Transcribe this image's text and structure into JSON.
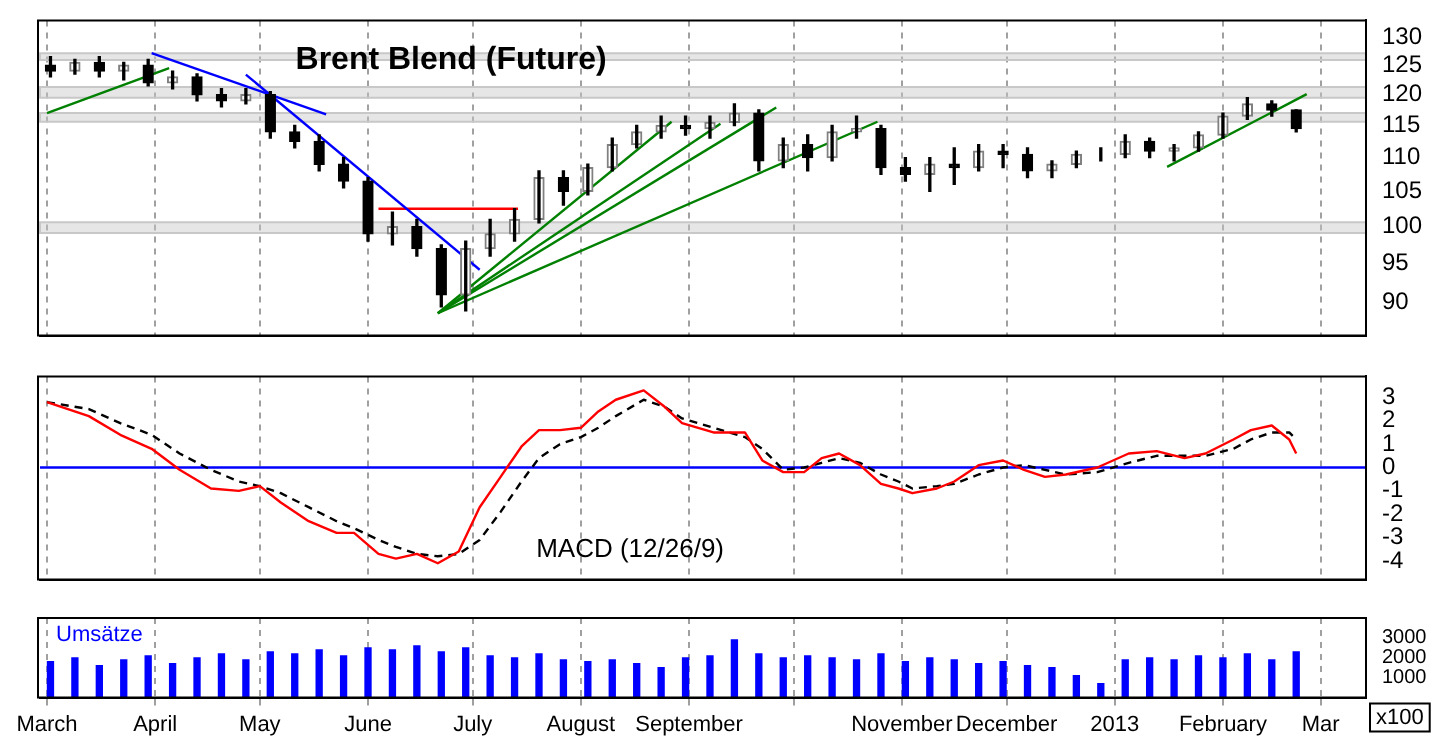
{
  "chart_data": [
    {
      "type": "candlestick",
      "title": "Brent Blend (Future)",
      "log": "y",
      "grid": "x",
      "tick_labels": "y",
      "x": [
        "2012-03-02",
        "2012-03-09",
        "2012-03-16",
        "2012-03-23",
        "2012-03-30",
        "2012-04-06",
        "2012-04-13",
        "2012-04-20",
        "2012-04-27",
        "2012-05-04",
        "2012-05-11",
        "2012-05-18",
        "2012-05-25",
        "2012-06-01",
        "2012-06-08",
        "2012-06-15",
        "2012-06-22",
        "2012-06-29",
        "2012-07-06",
        "2012-07-13",
        "2012-07-20",
        "2012-07-27",
        "2012-08-03",
        "2012-08-10",
        "2012-08-17",
        "2012-08-24",
        "2012-08-31",
        "2012-09-07",
        "2012-09-14",
        "2012-09-21",
        "2012-09-28",
        "2012-10-05",
        "2012-10-12",
        "2012-10-19",
        "2012-10-26",
        "2012-11-02",
        "2012-11-09",
        "2012-11-16",
        "2012-11-23",
        "2012-11-30",
        "2012-12-07",
        "2012-12-14",
        "2012-12-21",
        "2012-12-28",
        "2013-01-04",
        "2013-01-11",
        "2013-01-18",
        "2013-01-25",
        "2013-02-01",
        "2013-02-08",
        "2013-02-15",
        "2013-02-22"
      ],
      "ohlc": [
        [
          125,
          126.5,
          123,
          124
        ],
        [
          124,
          126,
          123.5,
          125.5
        ],
        [
          125.5,
          126.5,
          123,
          124
        ],
        [
          124,
          125.5,
          122.5,
          125
        ],
        [
          125,
          126,
          121.5,
          122
        ],
        [
          122,
          124,
          121,
          123
        ],
        [
          123,
          123.5,
          119,
          120
        ],
        [
          120,
          121,
          118,
          119
        ],
        [
          119,
          121,
          118.5,
          120
        ],
        [
          120,
          120.5,
          113,
          114
        ],
        [
          114,
          115,
          111.5,
          112.5
        ],
        [
          112.5,
          113.5,
          108,
          109
        ],
        [
          109,
          110,
          105.5,
          106.5
        ],
        [
          106.5,
          107,
          98,
          99
        ],
        [
          99,
          102,
          97.5,
          100
        ],
        [
          100,
          101,
          96,
          97
        ],
        [
          97,
          97.5,
          89.5,
          91
        ],
        [
          91,
          98,
          89,
          97
        ],
        [
          97,
          101,
          96,
          99
        ],
        [
          99,
          102.5,
          98,
          101
        ],
        [
          101,
          108,
          100.5,
          107
        ],
        [
          107,
          108,
          103,
          105
        ],
        [
          105,
          109,
          104.5,
          108.5
        ],
        [
          108.5,
          113,
          108,
          112
        ],
        [
          112,
          115,
          111.5,
          114
        ],
        [
          114,
          116.5,
          113,
          115
        ],
        [
          115,
          116.5,
          113.5,
          114.5
        ],
        [
          114.5,
          116.5,
          113,
          115.5
        ],
        [
          115.5,
          118.5,
          115,
          117
        ],
        [
          117,
          117.5,
          108,
          109.5
        ],
        [
          109.5,
          113,
          108.5,
          112
        ],
        [
          112,
          113.5,
          108,
          110
        ],
        [
          110,
          115,
          109.5,
          114
        ],
        [
          114,
          116.5,
          113,
          114.5
        ],
        [
          114.5,
          115,
          107.5,
          108.5
        ],
        [
          108.5,
          110,
          106.5,
          107.5
        ],
        [
          107.5,
          110,
          105,
          109
        ],
        [
          109,
          111.5,
          106,
          108.5
        ],
        [
          108.5,
          112,
          108,
          111
        ],
        [
          111,
          112,
          108.5,
          110.5
        ],
        [
          110.5,
          111.5,
          107,
          108
        ],
        [
          108,
          109.5,
          107,
          109
        ],
        [
          109,
          111,
          108.5,
          110.5
        ],
        [
          110.5,
          111.5,
          109.5,
          110.5
        ],
        [
          110.5,
          113.5,
          110,
          112.5
        ],
        [
          112.5,
          113,
          110,
          111
        ],
        [
          111,
          112,
          109.5,
          111.5
        ],
        [
          111.5,
          114,
          111,
          113.5
        ],
        [
          113.5,
          117,
          113,
          116.5
        ],
        [
          116.5,
          119.5,
          116,
          118.5
        ],
        [
          118.5,
          119,
          116.5,
          117.5
        ],
        [
          117.5,
          117.5,
          114,
          114.5
        ]
      ],
      "series": [
        {
          "type": "line",
          "color": "#0000ff",
          "x": [
            "2012-03-31",
            "2012-05-20"
          ],
          "values": [
            127.1,
            116.8
          ]
        },
        {
          "type": "line",
          "color": "#0000ff",
          "x": [
            "2012-04-27",
            "2012-07-03"
          ],
          "values": [
            123.4,
            94.2
          ]
        },
        {
          "type": "line",
          "color": "#008000",
          "x": [
            "2012-03-01",
            "2012-04-05"
          ],
          "values": [
            117,
            124.5
          ]
        },
        {
          "type": "line",
          "color": "#008000",
          "x": [
            "2012-06-21",
            "2012-08-27"
          ],
          "values": [
            88.7,
            115.6
          ]
        },
        {
          "type": "line",
          "color": "#008000",
          "x": [
            "2012-06-21",
            "2012-09-10"
          ],
          "values": [
            88.7,
            115.3
          ]
        },
        {
          "type": "line",
          "color": "#008000",
          "x": [
            "2012-06-21",
            "2012-09-26"
          ],
          "values": [
            88.7,
            117.9
          ]
        },
        {
          "type": "line",
          "color": "#008000",
          "x": [
            "2012-06-21",
            "2012-10-25"
          ],
          "values": [
            88.7,
            115.6
          ]
        },
        {
          "type": "line",
          "color": "#008000",
          "x": [
            "2013-01-16",
            "2013-02-25"
          ],
          "values": [
            108.6,
            120.1
          ]
        },
        {
          "type": "line",
          "color": "#ff0000",
          "x": [
            "2012-06-04",
            "2012-07-14"
          ],
          "values": [
            102.5,
            102.5
          ]
        }
      ],
      "bands": [
        {
          "axis": "y",
          "from": 125.9,
          "to": 127.1,
          "color": "#c8c8c8"
        },
        {
          "axis": "y",
          "from": 119.5,
          "to": 121.3,
          "color": "#c8c8c8"
        },
        {
          "axis": "y",
          "from": 115.6,
          "to": 117,
          "color": "#c8c8c8"
        },
        {
          "axis": "y",
          "from": 99.1,
          "to": 100.6,
          "color": "#c8c8c8"
        }
      ],
      "xlim": [
        "2012-02-28",
        "2013-03-14"
      ],
      "xticks": [
        {
          "value": "2012-03-01",
          "label": null
        },
        {
          "value": "2012-04-01",
          "label": null
        },
        {
          "value": "2012-05-01",
          "label": null
        },
        {
          "value": "2012-06-01",
          "label": null
        },
        {
          "value": "2012-07-01",
          "label": null
        },
        {
          "value": "2012-08-01",
          "label": null
        },
        {
          "value": "2012-09-01",
          "label": null
        },
        {
          "value": "2012-10-01",
          "label": null
        },
        {
          "value": "2012-11-01",
          "label": null
        },
        {
          "value": "2012-12-01",
          "label": null
        },
        {
          "value": "2013-01-01",
          "label": null
        },
        {
          "value": "2013-02-01",
          "label": null
        },
        {
          "value": "2013-03-01",
          "label": null
        }
      ],
      "ylim": [
        86,
        133
      ],
      "yticks": [
        90,
        95,
        100,
        105,
        110,
        115,
        120,
        125,
        130
      ]
    },
    {
      "type": "line",
      "grid": "x",
      "tick_labels": "y",
      "annotations": [
        "MACD (12/26/9)"
      ],
      "x": [
        "2012-03-01",
        "2012-03-13",
        "2012-03-22",
        "2012-03-31",
        "2012-04-08",
        "2012-04-17",
        "2012-04-25",
        "2012-05-01",
        "2012-05-07",
        "2012-05-15",
        "2012-05-23",
        "2012-05-28",
        "2012-06-04",
        "2012-06-09",
        "2012-06-15",
        "2012-06-21",
        "2012-06-27",
        "2012-07-03",
        "2012-07-09",
        "2012-07-15",
        "2012-07-20",
        "2012-07-26",
        "2012-08-01",
        "2012-08-06",
        "2012-08-11",
        "2012-08-19",
        "2012-08-25",
        "2012-08-30",
        "2012-09-08",
        "2012-09-17",
        "2012-09-22",
        "2012-09-28",
        "2012-10-04",
        "2012-10-09",
        "2012-10-14",
        "2012-10-20",
        "2012-10-26",
        "2012-10-31",
        "2012-11-04",
        "2012-11-11",
        "2012-11-16",
        "2012-11-23",
        "2012-11-30",
        "2012-12-06",
        "2012-12-12",
        "2012-12-18",
        "2012-12-27",
        "2013-01-05",
        "2013-01-13",
        "2013-01-21",
        "2013-01-27",
        "2013-02-04",
        "2013-02-09",
        "2013-02-15",
        "2013-02-20",
        "2013-02-22"
      ],
      "series": [
        {
          "color": "#ff0000",
          "line_style": "solid",
          "values": [
            2.8,
            2.2,
            1.4,
            0.8,
            -0.1,
            -0.9,
            -1.0,
            -0.8,
            -1.5,
            -2.3,
            -2.8,
            -2.8,
            -3.7,
            -3.9,
            -3.7,
            -4.1,
            -3.6,
            -1.7,
            -0.4,
            0.9,
            1.6,
            1.6,
            1.7,
            2.4,
            2.9,
            3.3,
            2.6,
            1.9,
            1.5,
            1.5,
            0.3,
            -0.2,
            -0.2,
            0.4,
            0.6,
            0.1,
            -0.7,
            -0.9,
            -1.1,
            -0.9,
            -0.6,
            0.1,
            0.3,
            -0.1,
            -0.4,
            -0.3,
            0.0,
            0.6,
            0.7,
            0.4,
            0.6,
            1.2,
            1.6,
            1.8,
            1.2,
            0.6
          ]
        },
        {
          "color": "#000000",
          "line_style": "dashed",
          "values": [
            2.8,
            2.5,
            1.9,
            1.4,
            0.6,
            -0.1,
            -0.6,
            -0.8,
            -1.1,
            -1.7,
            -2.3,
            -2.6,
            -3.1,
            -3.4,
            -3.7,
            -3.8,
            -3.7,
            -3.1,
            -1.9,
            -0.6,
            0.4,
            1.0,
            1.3,
            1.7,
            2.2,
            2.9,
            2.6,
            2.1,
            1.7,
            1.3,
            0.8,
            -0.1,
            0.0,
            0.2,
            0.4,
            0.2,
            -0.3,
            -0.6,
            -0.9,
            -0.8,
            -0.7,
            -0.3,
            0.0,
            0.1,
            -0.1,
            -0.3,
            -0.2,
            0.2,
            0.5,
            0.5,
            0.5,
            0.8,
            1.2,
            1.5,
            1.5,
            1.2
          ]
        }
      ],
      "ref_lines": [
        {
          "axis": "y",
          "value": 0,
          "color": "#0000ff"
        }
      ],
      "xlim": [
        "2012-02-28",
        "2013-03-14"
      ],
      "xticks": [
        {
          "value": "2012-03-01",
          "label": null
        },
        {
          "value": "2012-04-01",
          "label": null
        },
        {
          "value": "2012-05-01",
          "label": null
        },
        {
          "value": "2012-06-01",
          "label": null
        },
        {
          "value": "2012-07-01",
          "label": null
        },
        {
          "value": "2012-08-01",
          "label": null
        },
        {
          "value": "2012-09-01",
          "label": null
        },
        {
          "value": "2012-10-01",
          "label": null
        },
        {
          "value": "2012-11-01",
          "label": null
        },
        {
          "value": "2012-12-01",
          "label": null
        },
        {
          "value": "2013-01-01",
          "label": null
        },
        {
          "value": "2013-02-01",
          "label": null
        },
        {
          "value": "2013-03-01",
          "label": null
        }
      ],
      "ylim": [
        -4.8,
        3.9
      ],
      "yticks": [
        -4,
        -3,
        -2,
        -1,
        0,
        1,
        2,
        3
      ]
    },
    {
      "type": "bar",
      "grid": "x",
      "annotations": [
        "Umsätze"
      ],
      "ylabel": "x100",
      "color": "#0000ff",
      "x": [
        "2012-03-02",
        "2012-03-09",
        "2012-03-16",
        "2012-03-23",
        "2012-03-30",
        "2012-04-06",
        "2012-04-13",
        "2012-04-20",
        "2012-04-27",
        "2012-05-04",
        "2012-05-11",
        "2012-05-18",
        "2012-05-25",
        "2012-06-01",
        "2012-06-08",
        "2012-06-15",
        "2012-06-22",
        "2012-06-29",
        "2012-07-06",
        "2012-07-13",
        "2012-07-20",
        "2012-07-27",
        "2012-08-03",
        "2012-08-10",
        "2012-08-17",
        "2012-08-24",
        "2012-08-31",
        "2012-09-07",
        "2012-09-14",
        "2012-09-21",
        "2012-09-28",
        "2012-10-05",
        "2012-10-12",
        "2012-10-19",
        "2012-10-26",
        "2012-11-02",
        "2012-11-09",
        "2012-11-16",
        "2012-11-23",
        "2012-11-30",
        "2012-12-07",
        "2012-12-14",
        "2012-12-21",
        "2012-12-28",
        "2013-01-04",
        "2013-01-11",
        "2013-01-18",
        "2013-01-25",
        "2013-02-01",
        "2013-02-08",
        "2013-02-15",
        "2013-02-22"
      ],
      "values": [
        1800,
        2000,
        1600,
        1900,
        2100,
        1700,
        2000,
        2200,
        1900,
        2300,
        2200,
        2400,
        2100,
        2500,
        2400,
        2600,
        2300,
        2500,
        2100,
        2000,
        2200,
        1900,
        1800,
        1900,
        1700,
        1500,
        2000,
        2100,
        2900,
        2200,
        2000,
        2100,
        2000,
        1900,
        2200,
        1800,
        2000,
        1900,
        1700,
        1800,
        1600,
        1500,
        1100,
        700,
        1900,
        2000,
        1900,
        2100,
        2000,
        2200,
        1900,
        2300
      ],
      "xlim": [
        "2012-02-28",
        "2013-03-14"
      ],
      "xticks": [
        {
          "value": "2012-03-01",
          "label": "March"
        },
        {
          "value": "2012-04-01",
          "label": "April"
        },
        {
          "value": "2012-05-01",
          "label": "May"
        },
        {
          "value": "2012-06-01",
          "label": "June"
        },
        {
          "value": "2012-07-01",
          "label": "July"
        },
        {
          "value": "2012-08-01",
          "label": "August"
        },
        {
          "value": "2012-09-01",
          "label": "September"
        },
        {
          "value": "2012-10-01",
          "label": null
        },
        {
          "value": "2012-11-01",
          "label": "November"
        },
        {
          "value": "2012-12-01",
          "label": "December"
        },
        {
          "value": "2013-01-01",
          "label": "2013"
        },
        {
          "value": "2013-02-01",
          "label": "February"
        },
        {
          "value": "2013-03-01",
          "label": "Mar"
        }
      ],
      "ylim": [
        0,
        4000
      ],
      "yticks": [
        1000,
        2000,
        3000
      ]
    }
  ]
}
